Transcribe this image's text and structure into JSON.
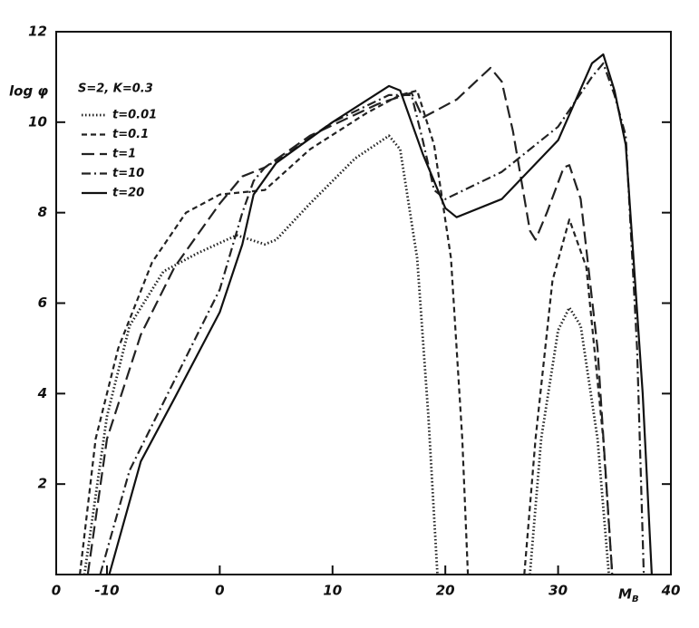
{
  "chart_data": {
    "type": "line",
    "y_label": "log φ",
    "x_label": "M",
    "x_label_sub": "B",
    "origin_label": "0",
    "legend_title": "S=2, K=0.3",
    "xlim": [
      -14.5,
      40
    ],
    "xticks": [
      -10,
      0,
      10,
      20,
      30,
      40
    ],
    "ylim": [
      0,
      12
    ],
    "yticks": [
      2,
      4,
      6,
      8,
      10,
      12
    ],
    "series": [
      {
        "name": "t=0.01",
        "color": "#222",
        "dash": "dotted",
        "x": [
          -12,
          -10,
          -8,
          -5,
          -2,
          1.5,
          4,
          5,
          8,
          12,
          15,
          16,
          17.5,
          18.5,
          19.3,
          null,
          27.5,
          28.5,
          30,
          31,
          32,
          33.5,
          34.5
        ],
        "values": [
          0,
          3.5,
          5.5,
          6.7,
          7.1,
          7.5,
          7.3,
          7.4,
          8.2,
          9.2,
          9.7,
          9.4,
          7,
          3.5,
          0,
          null,
          0,
          3,
          5.4,
          5.9,
          5.5,
          3,
          0
        ]
      },
      {
        "name": "t=0.1",
        "color": "#222",
        "dash": "short-dash",
        "x": [
          -12.4,
          -11,
          -9,
          -6,
          -3,
          0,
          4,
          8,
          13,
          16,
          17.5,
          19,
          20.5,
          21.5,
          22,
          null,
          27,
          28,
          29.5,
          31,
          32.5,
          34,
          34.8
        ],
        "values": [
          0,
          3,
          5,
          6.9,
          8,
          8.4,
          8.5,
          9.4,
          10.2,
          10.6,
          10.7,
          9.5,
          7,
          3,
          0,
          null,
          0,
          3,
          6.5,
          7.85,
          6.8,
          3,
          0
        ]
      },
      {
        "name": "t=1",
        "color": "#222",
        "dash": "long-dash",
        "x": [
          -11.7,
          -10,
          -7,
          -4,
          0,
          2,
          4,
          8,
          14,
          17,
          18,
          21,
          24,
          25,
          26,
          27.5,
          28,
          29,
          30.5,
          31,
          32,
          33.5,
          34.8
        ],
        "values": [
          0,
          3,
          5.3,
          6.8,
          8.2,
          8.8,
          9,
          9.7,
          10.4,
          10.65,
          10.1,
          10.5,
          11.2,
          10.9,
          9.8,
          7.6,
          7.4,
          8,
          9,
          9.05,
          8.3,
          5,
          0
        ]
      },
      {
        "name": "t=10",
        "color": "#222",
        "dash": "dash-dot",
        "x": [
          -10.6,
          -8,
          -4,
          0,
          2,
          3,
          4,
          6,
          10,
          15,
          17,
          18,
          19,
          20,
          25,
          30,
          33,
          34,
          35,
          36,
          37,
          37.6
        ],
        "values": [
          0,
          2.3,
          4.3,
          6.3,
          8,
          8.7,
          9,
          9.3,
          10,
          10.6,
          10.6,
          9.6,
          8.5,
          8.3,
          8.9,
          9.9,
          11,
          11.3,
          10.6,
          9.7,
          5,
          0
        ]
      },
      {
        "name": "t=20",
        "color": "#111",
        "dash": "solid",
        "x": [
          -9.8,
          -7,
          -4,
          0,
          2,
          3,
          5,
          10,
          15,
          16,
          18,
          20,
          21,
          25,
          30,
          33,
          34,
          35,
          36,
          37.5,
          38.3
        ],
        "values": [
          0,
          2.5,
          3.9,
          5.8,
          7.3,
          8.4,
          9.1,
          10,
          10.8,
          10.7,
          9.3,
          8.1,
          7.9,
          8.3,
          9.6,
          11.3,
          11.5,
          10.7,
          9.5,
          4,
          0
        ]
      }
    ]
  }
}
